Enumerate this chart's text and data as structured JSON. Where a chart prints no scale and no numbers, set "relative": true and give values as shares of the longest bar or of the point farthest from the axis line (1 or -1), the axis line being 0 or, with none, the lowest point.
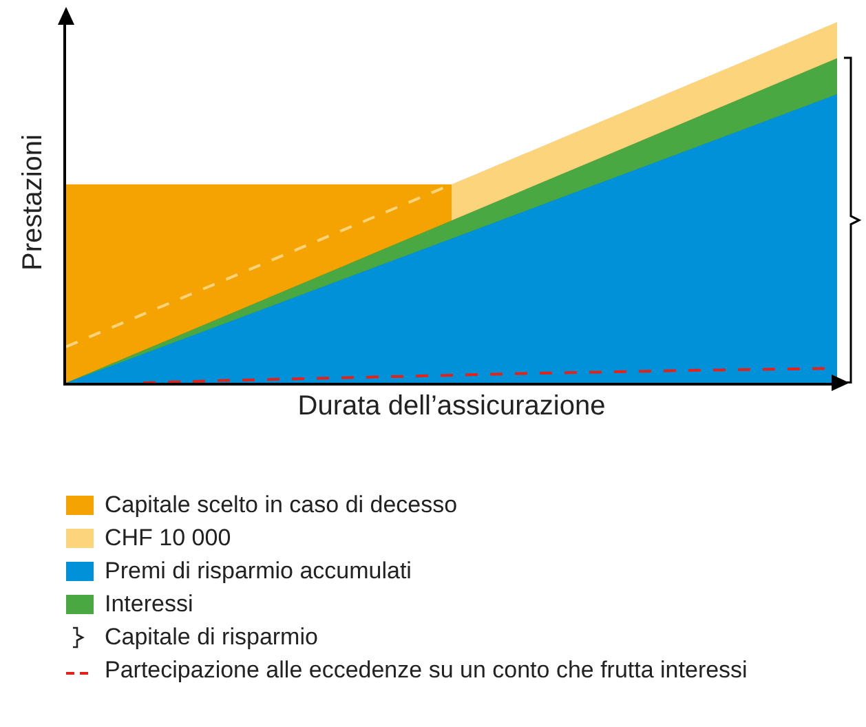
{
  "chart_data": {
    "type": "area",
    "relative": true,
    "xlabel": "Durata dell’assicurazione",
    "ylabel": "Prestazioni",
    "legend": "bottom",
    "categories": [
      null,
      null,
      null,
      null,
      null,
      null,
      null,
      null,
      null,
      null,
      null
    ],
    "series": [
      {
        "name": "Capitale scelto in caso di decesso",
        "color": "#f5a300",
        "values": [
          0.55,
          0.55,
          0.55,
          0.55,
          0.55,
          0.55,
          null,
          null,
          null,
          null,
          null
        ]
      },
      {
        "name": "CHF 10 000",
        "color": "#fcd47c",
        "values": [
          null,
          null,
          null,
          null,
          null,
          0.55,
          0.64,
          0.73,
          0.82,
          0.91,
          1.0
        ]
      },
      {
        "name": "Premi di risparmio accumulati",
        "color": "#0091d9",
        "values": [
          0,
          0.08,
          0.16,
          0.24,
          0.32,
          0.4,
          0.48,
          0.56,
          0.64,
          0.72,
          0.8
        ]
      },
      {
        "name": "Interessi",
        "color": "#4aa843",
        "values": [
          0,
          0.09,
          0.18,
          0.27,
          0.36,
          0.45,
          0.54,
          0.63,
          0.72,
          0.81,
          0.9
        ]
      },
      {
        "type": "line",
        "line_style": "dashed",
        "color": "#fcd47c",
        "values": [
          0.1,
          0.19,
          0.28,
          0.37,
          0.46,
          0.55,
          null,
          null,
          null,
          null,
          null
        ]
      },
      {
        "name": "Partecipazione alle eccedenze su un conto che frutta interessi",
        "type": "line",
        "line_style": "dashed",
        "color": "#e2231a",
        "values": [
          null,
          0,
          0.006,
          0.011,
          0.016,
          0.021,
          0.026,
          0.03,
          0.034,
          0.037,
          0.04
        ]
      }
    ],
    "annotations": [
      "Capitale di risparmio"
    ]
  }
}
